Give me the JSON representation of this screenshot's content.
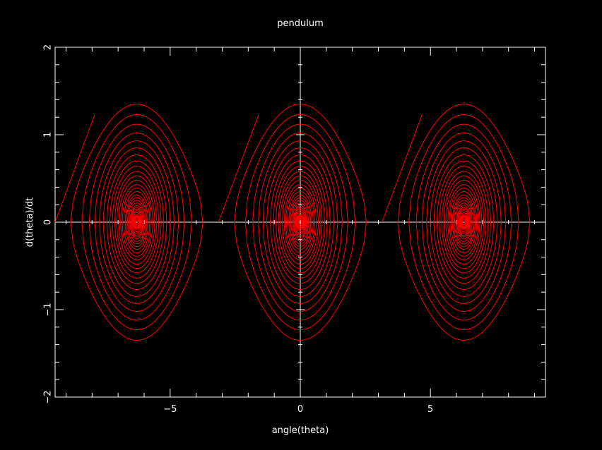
{
  "chart_data": {
    "type": "line",
    "title": "pendulum",
    "xlabel": "angle(theta)",
    "ylabel": "d(theta)/dt",
    "xlim": [
      -9.42,
      9.42
    ],
    "ylim": [
      -2,
      2
    ],
    "xticks": [
      -5,
      0,
      5
    ],
    "yticks": [
      -2,
      -1,
      0,
      1,
      2
    ],
    "x_tick_labels": [
      "−5",
      "0",
      "5"
    ],
    "y_tick_labels": [
      "−2",
      "−1",
      "0",
      "1",
      "2"
    ],
    "grid": false,
    "background": "#000000",
    "axis_color": "#ffffff",
    "line_color": "#ff0000",
    "centers": [
      -6.283,
      0,
      6.283
    ],
    "orbit_peak_speeds": [
      1.35,
      1.23,
      1.12,
      1.02,
      0.93,
      0.85,
      0.77,
      0.7,
      0.64,
      0.58,
      0.53,
      0.48,
      0.43,
      0.39,
      0.35,
      0.31,
      0.28,
      0.25,
      0.22,
      0.19,
      0.17,
      0.15,
      0.13,
      0.11,
      0.09,
      0.075,
      0.06,
      0.045,
      0.03
    ],
    "entry_segments": [
      {
        "from": [
          -9.42,
          0
        ],
        "to": [
          -7.9,
          1.23
        ]
      },
      {
        "from": [
          -3.14,
          0
        ],
        "to": [
          -1.6,
          1.23
        ]
      },
      {
        "from": [
          3.14,
          0
        ],
        "to": [
          4.68,
          1.23
        ]
      }
    ]
  }
}
